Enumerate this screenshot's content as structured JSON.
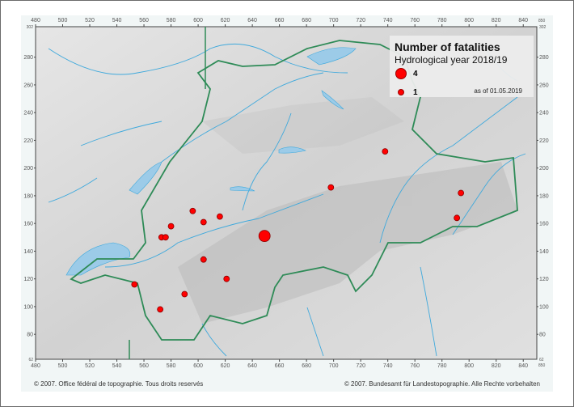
{
  "legend": {
    "title": "Number of fatalities",
    "subtitle": "Hydrological year 2018/19",
    "large_label": "4",
    "small_label": "1",
    "date_note": "as of 01.05.2019"
  },
  "axes": {
    "x_ticks": [
      "480",
      "500",
      "520",
      "540",
      "560",
      "580",
      "600",
      "620",
      "640",
      "660",
      "680",
      "700",
      "720",
      "740",
      "760",
      "780",
      "800",
      "820",
      "840"
    ],
    "x_end": "850",
    "y_ticks": [
      "280",
      "260",
      "240",
      "220",
      "200",
      "180",
      "160",
      "140",
      "120",
      "100",
      "80"
    ],
    "y_top": "302",
    "y_bottom": "62",
    "x_range": [
      480,
      850
    ],
    "y_range": [
      62,
      302
    ]
  },
  "fatalities": [
    {
      "x": 649,
      "y": 151,
      "count": 4
    },
    {
      "x": 738,
      "y": 212,
      "count": 1
    },
    {
      "x": 698,
      "y": 186,
      "count": 1
    },
    {
      "x": 794,
      "y": 182,
      "count": 1
    },
    {
      "x": 791,
      "y": 164,
      "count": 1
    },
    {
      "x": 596,
      "y": 169,
      "count": 1
    },
    {
      "x": 604,
      "y": 161,
      "count": 1
    },
    {
      "x": 616,
      "y": 165,
      "count": 1
    },
    {
      "x": 580,
      "y": 158,
      "count": 1
    },
    {
      "x": 573,
      "y": 150,
      "count": 1
    },
    {
      "x": 576,
      "y": 150,
      "count": 1
    },
    {
      "x": 604,
      "y": 134,
      "count": 1
    },
    {
      "x": 621,
      "y": 120,
      "count": 1
    },
    {
      "x": 590,
      "y": 109,
      "count": 1
    },
    {
      "x": 553,
      "y": 116,
      "count": 1
    },
    {
      "x": 572,
      "y": 98,
      "count": 1
    }
  ],
  "colors": {
    "marker": "#ff0000",
    "border": "#2e8b57",
    "water": "#3fa9dc",
    "lake": "#9ccbe8"
  },
  "footer": {
    "left": "© 2007. Office fédéral de topographie. Tous droits reservés",
    "right": "© 2007. Bundesamt für Landestopographie. Alle Rechte vorbehalten"
  }
}
